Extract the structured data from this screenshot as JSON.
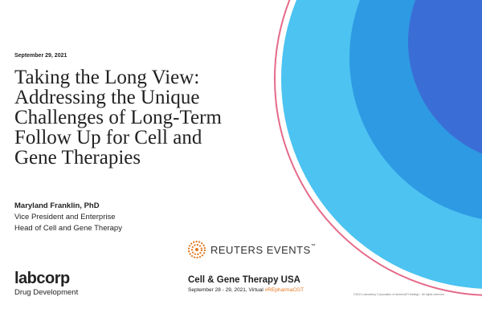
{
  "slide": {
    "date": "September 29, 2021",
    "title_lines": [
      "Taking the Long View:",
      "Addressing the Unique",
      "Challenges of Long-Term",
      "Follow Up for Cell and",
      "Gene Therapies"
    ],
    "presenter": {
      "name": "Maryland Franklin, PhD",
      "role_lines": [
        "Vice President and Enterprise",
        "Head of Cell and Gene Therapy"
      ]
    },
    "logo": {
      "brand": "labcorp",
      "subtitle": "Drug Development"
    },
    "sponsor": {
      "name": "REUTERS EVENTS",
      "trademark": "™"
    },
    "event": {
      "name": "Cell & Gene Therapy USA",
      "dates": "September 28 - 29, 2021, Virtual",
      "hashtag": "#REpharmaCGT"
    },
    "copyright": "©2021 Laboratory Corporation of America® Holdings · All rights reserved"
  }
}
